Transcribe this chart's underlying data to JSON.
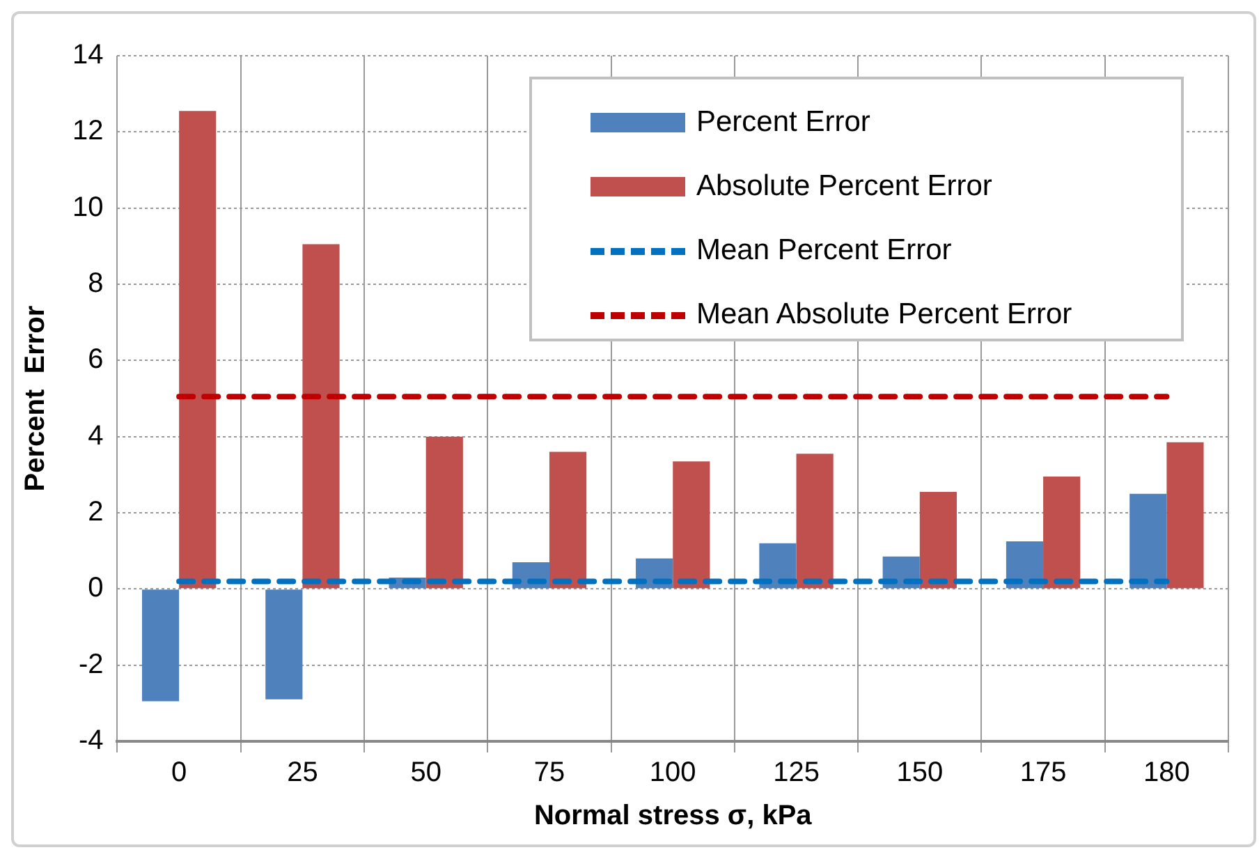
{
  "chart_data": {
    "type": "bar",
    "xlabel": "Normal stress σ, kPa",
    "ylabel": "Percent  Error",
    "categories": [
      "0",
      "25",
      "50",
      "75",
      "100",
      "125",
      "150",
      "175",
      "180"
    ],
    "series": [
      {
        "name": "Percent Error",
        "color": "#4f81bd",
        "values": [
          -2.95,
          -2.9,
          0.3,
          0.7,
          0.8,
          1.2,
          0.85,
          1.25,
          2.5
        ]
      },
      {
        "name": "Absolute Percent Error",
        "color": "#c0504d",
        "values": [
          12.55,
          9.05,
          4.0,
          3.6,
          3.35,
          3.55,
          2.55,
          2.95,
          3.85
        ]
      },
      {
        "name": "Mean Percent Error",
        "type": "line",
        "color": "#0070c0",
        "line_style": "dashed",
        "values": [
          0.2,
          0.2,
          0.2,
          0.2,
          0.2,
          0.2,
          0.2,
          0.2,
          0.2
        ]
      },
      {
        "name": "Mean Absolute Percent Error",
        "type": "line",
        "color": "#c00000",
        "line_style": "dashed",
        "values": [
          5.05,
          5.05,
          5.05,
          5.05,
          5.05,
          5.05,
          5.05,
          5.05,
          5.05
        ]
      }
    ],
    "ylim": [
      -4,
      14
    ],
    "yticks": [
      -4,
      -2,
      0,
      2,
      4,
      6,
      8,
      10,
      12,
      14
    ],
    "grid": true,
    "legend": "top right",
    "marker": "none"
  }
}
